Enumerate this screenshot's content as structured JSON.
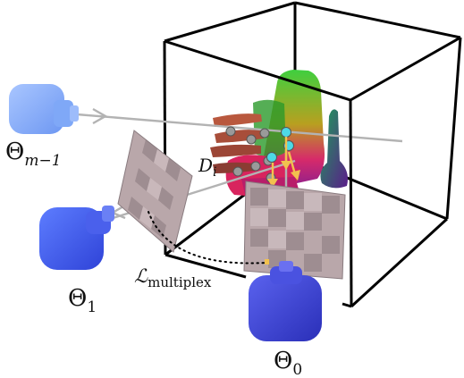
{
  "labels": {
    "theta_m1": {
      "base": "Θ",
      "sub": "m−1"
    },
    "theta_1": {
      "base": "Θ",
      "sub": "1"
    },
    "theta_0": {
      "base": "Θ",
      "sub": "0"
    },
    "d_i": {
      "base": "D",
      "sub": "i"
    },
    "loss": {
      "base": "ℒ",
      "sub": "multiplex"
    }
  },
  "colors": {
    "cube_edge": "#000000",
    "ray": "#b3b3b3",
    "camera_far": "#7fa8f7",
    "camera_mid": "#3f5cf0",
    "camera_near": "#3a3fd6",
    "sample_point": "#9a9a9a",
    "sample_point_highlight": "#4dd9e6",
    "gradient_arrow": "#f2c14e",
    "dotted_link": "#000000",
    "image_plane_tint": "#b9a7aa"
  },
  "icons": [
    "camera-icon",
    "image-plane-icon",
    "sample-point-icon",
    "ray-arrow-icon"
  ]
}
